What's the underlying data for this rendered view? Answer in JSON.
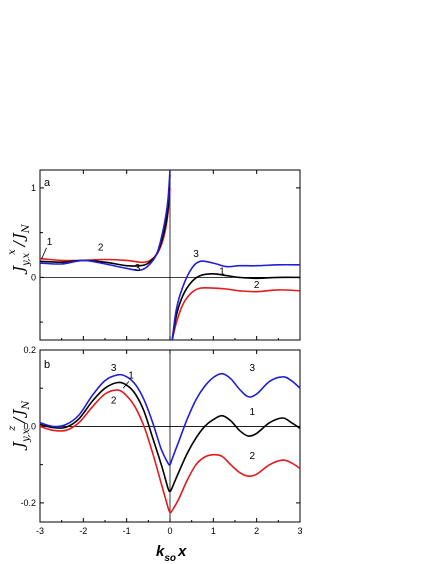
{
  "chart_data": [
    {
      "type": "line",
      "panel_label": "a",
      "xlim": [
        -3,
        3
      ],
      "ylim": [
        -0.7,
        1.2
      ],
      "y_ticks_labeled": [
        "0",
        "1"
      ],
      "grid": false,
      "series": [
        {
          "label": "1",
          "color": "#000000",
          "x": [
            -3.0,
            -2.5,
            -2.0,
            -1.5,
            -1.0,
            -0.7,
            -0.5,
            -0.3,
            -0.15,
            -0.05,
            0.0,
            0.05,
            0.15,
            0.3,
            0.5,
            0.7,
            1.0,
            1.3,
            1.6,
            2.0,
            2.5,
            3.0
          ],
          "y": [
            0.18,
            0.17,
            0.19,
            0.17,
            0.13,
            0.13,
            0.16,
            0.27,
            0.48,
            0.75,
            1.15,
            -0.7,
            -0.42,
            -0.2,
            -0.05,
            0.02,
            0.04,
            0.02,
            0.0,
            -0.01,
            0.0,
            0.0
          ]
        },
        {
          "label": "2",
          "color": "#e41a1c",
          "x": [
            -3.0,
            -2.5,
            -2.0,
            -1.5,
            -1.0,
            -0.7,
            -0.5,
            -0.3,
            -0.15,
            -0.05,
            0.0,
            0.05,
            0.15,
            0.3,
            0.5,
            0.7,
            1.0,
            1.3,
            1.6,
            2.0,
            2.5,
            3.0
          ],
          "y": [
            0.21,
            0.19,
            0.19,
            0.2,
            0.19,
            0.17,
            0.18,
            0.26,
            0.44,
            0.7,
            1.0,
            -0.7,
            -0.5,
            -0.3,
            -0.17,
            -0.12,
            -0.12,
            -0.13,
            -0.15,
            -0.16,
            -0.14,
            -0.15
          ]
        },
        {
          "label": "3",
          "color": "#1f1fd6",
          "x": [
            -3.0,
            -2.5,
            -2.0,
            -1.5,
            -1.0,
            -0.7,
            -0.5,
            -0.3,
            -0.15,
            -0.05,
            0.0,
            0.05,
            0.15,
            0.3,
            0.5,
            0.7,
            1.0,
            1.3,
            1.6,
            2.0,
            2.5,
            3.0
          ],
          "y": [
            0.16,
            0.15,
            0.19,
            0.15,
            0.1,
            0.08,
            0.13,
            0.27,
            0.55,
            0.85,
            1.2,
            -0.7,
            -0.35,
            -0.1,
            0.1,
            0.18,
            0.16,
            0.12,
            0.13,
            0.13,
            0.14,
            0.14
          ]
        }
      ],
      "annotations": [
        {
          "text": "1",
          "x": -2.78,
          "y": 0.36
        },
        {
          "text": "2",
          "x": -1.6,
          "y": 0.3
        },
        {
          "text": "3",
          "x": -0.75,
          "y": 0.07
        },
        {
          "text": "3",
          "x": 0.6,
          "y": 0.23
        },
        {
          "text": "1",
          "x": 1.2,
          "y": 0.03
        },
        {
          "text": "2",
          "x": 2.0,
          "y": -0.12
        }
      ]
    },
    {
      "type": "line",
      "panel_label": "b",
      "xlim": [
        -3,
        3
      ],
      "ylim": [
        -0.25,
        0.2
      ],
      "x_ticks": [
        "-3",
        "-2",
        "-1",
        "0",
        "1",
        "2",
        "3"
      ],
      "y_ticks_labeled": [
        "0.2",
        "0.0",
        "-0.2"
      ],
      "grid": false,
      "series": [
        {
          "label": "1",
          "color": "#000000",
          "x": [
            -3.0,
            -2.7,
            -2.4,
            -2.1,
            -1.8,
            -1.5,
            -1.2,
            -1.0,
            -0.8,
            -0.6,
            -0.4,
            -0.2,
            -0.05,
            0.0,
            0.05,
            0.2,
            0.4,
            0.6,
            0.8,
            1.0,
            1.2,
            1.4,
            1.6,
            1.8,
            2.0,
            2.3,
            2.6,
            2.8,
            3.0
          ],
          "y": [
            0.005,
            -0.003,
            -0.002,
            0.02,
            0.065,
            0.1,
            0.115,
            0.108,
            0.085,
            0.04,
            -0.03,
            -0.1,
            -0.16,
            -0.17,
            -0.16,
            -0.12,
            -0.07,
            -0.03,
            0.0,
            0.018,
            0.028,
            0.015,
            -0.01,
            -0.025,
            -0.018,
            0.01,
            0.022,
            0.01,
            -0.005
          ]
        },
        {
          "label": "2",
          "color": "#e41a1c",
          "x": [
            -3.0,
            -2.7,
            -2.4,
            -2.1,
            -1.8,
            -1.5,
            -1.2,
            -1.0,
            -0.8,
            -0.6,
            -0.4,
            -0.2,
            -0.05,
            0.0,
            0.05,
            0.2,
            0.4,
            0.6,
            0.8,
            1.0,
            1.2,
            1.4,
            1.6,
            1.8,
            2.0,
            2.3,
            2.6,
            2.8,
            3.0
          ],
          "y": [
            0.0,
            -0.01,
            -0.01,
            0.01,
            0.05,
            0.085,
            0.095,
            0.08,
            0.05,
            0.0,
            -0.07,
            -0.15,
            -0.21,
            -0.225,
            -0.22,
            -0.19,
            -0.14,
            -0.1,
            -0.08,
            -0.074,
            -0.078,
            -0.1,
            -0.12,
            -0.13,
            -0.125,
            -0.1,
            -0.088,
            -0.095,
            -0.11
          ]
        },
        {
          "label": "3",
          "color": "#1f1fd6",
          "x": [
            -3.0,
            -2.7,
            -2.4,
            -2.1,
            -1.8,
            -1.5,
            -1.2,
            -1.0,
            -0.8,
            -0.6,
            -0.4,
            -0.2,
            -0.05,
            0.0,
            0.05,
            0.2,
            0.4,
            0.6,
            0.8,
            1.0,
            1.2,
            1.4,
            1.6,
            1.8,
            2.0,
            2.3,
            2.6,
            2.8,
            3.0
          ],
          "y": [
            0.01,
            0.0,
            0.005,
            0.03,
            0.08,
            0.12,
            0.135,
            0.13,
            0.11,
            0.07,
            0.01,
            -0.06,
            -0.095,
            -0.1,
            -0.085,
            -0.04,
            0.02,
            0.07,
            0.105,
            0.128,
            0.138,
            0.125,
            0.098,
            0.078,
            0.085,
            0.118,
            0.13,
            0.12,
            0.1
          ]
        }
      ],
      "annotations": [
        {
          "text": "3",
          "x": -1.3,
          "y": 0.145
        },
        {
          "text": "1",
          "x": -0.9,
          "y": 0.125
        },
        {
          "text": "2",
          "x": -1.3,
          "y": 0.06
        },
        {
          "text": "3",
          "x": 1.9,
          "y": 0.145
        },
        {
          "text": "1",
          "x": 1.9,
          "y": 0.03
        },
        {
          "text": "2",
          "x": 1.9,
          "y": -0.085
        }
      ]
    }
  ],
  "axes": {
    "x_label_main": "k",
    "x_label_sub": "so",
    "x_label_tail": "x",
    "y_label_a": {
      "main": "J",
      "sub": "y,x",
      "sup": "x",
      "slash": "/",
      "denom": "J",
      "denom_sub": "N"
    },
    "y_label_b": {
      "main": "J",
      "sub": "y,x",
      "sup": "z",
      "slash": "/",
      "denom": "J",
      "denom_sub": "N"
    }
  }
}
